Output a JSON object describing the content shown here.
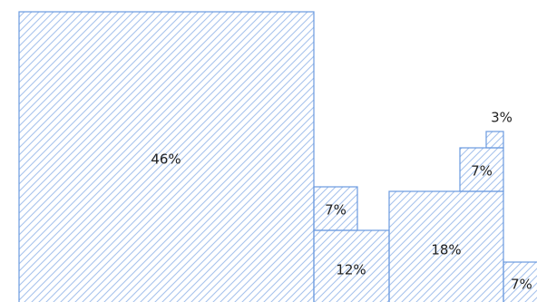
{
  "chart_data": {
    "type": "treemap",
    "title": "",
    "colors": {
      "stroke": "#6a9ae0",
      "hatch": "#a8c3ec",
      "label": "#222222"
    },
    "tiles": [
      {
        "label": "46%",
        "value": 46
      },
      {
        "label": "7%",
        "value": 7
      },
      {
        "label": "12%",
        "value": 12
      },
      {
        "label": "18%",
        "value": 18
      },
      {
        "label": "7%",
        "value": 7
      },
      {
        "label": "3%",
        "value": 3
      },
      {
        "label": "7%",
        "value": 7
      }
    ]
  }
}
